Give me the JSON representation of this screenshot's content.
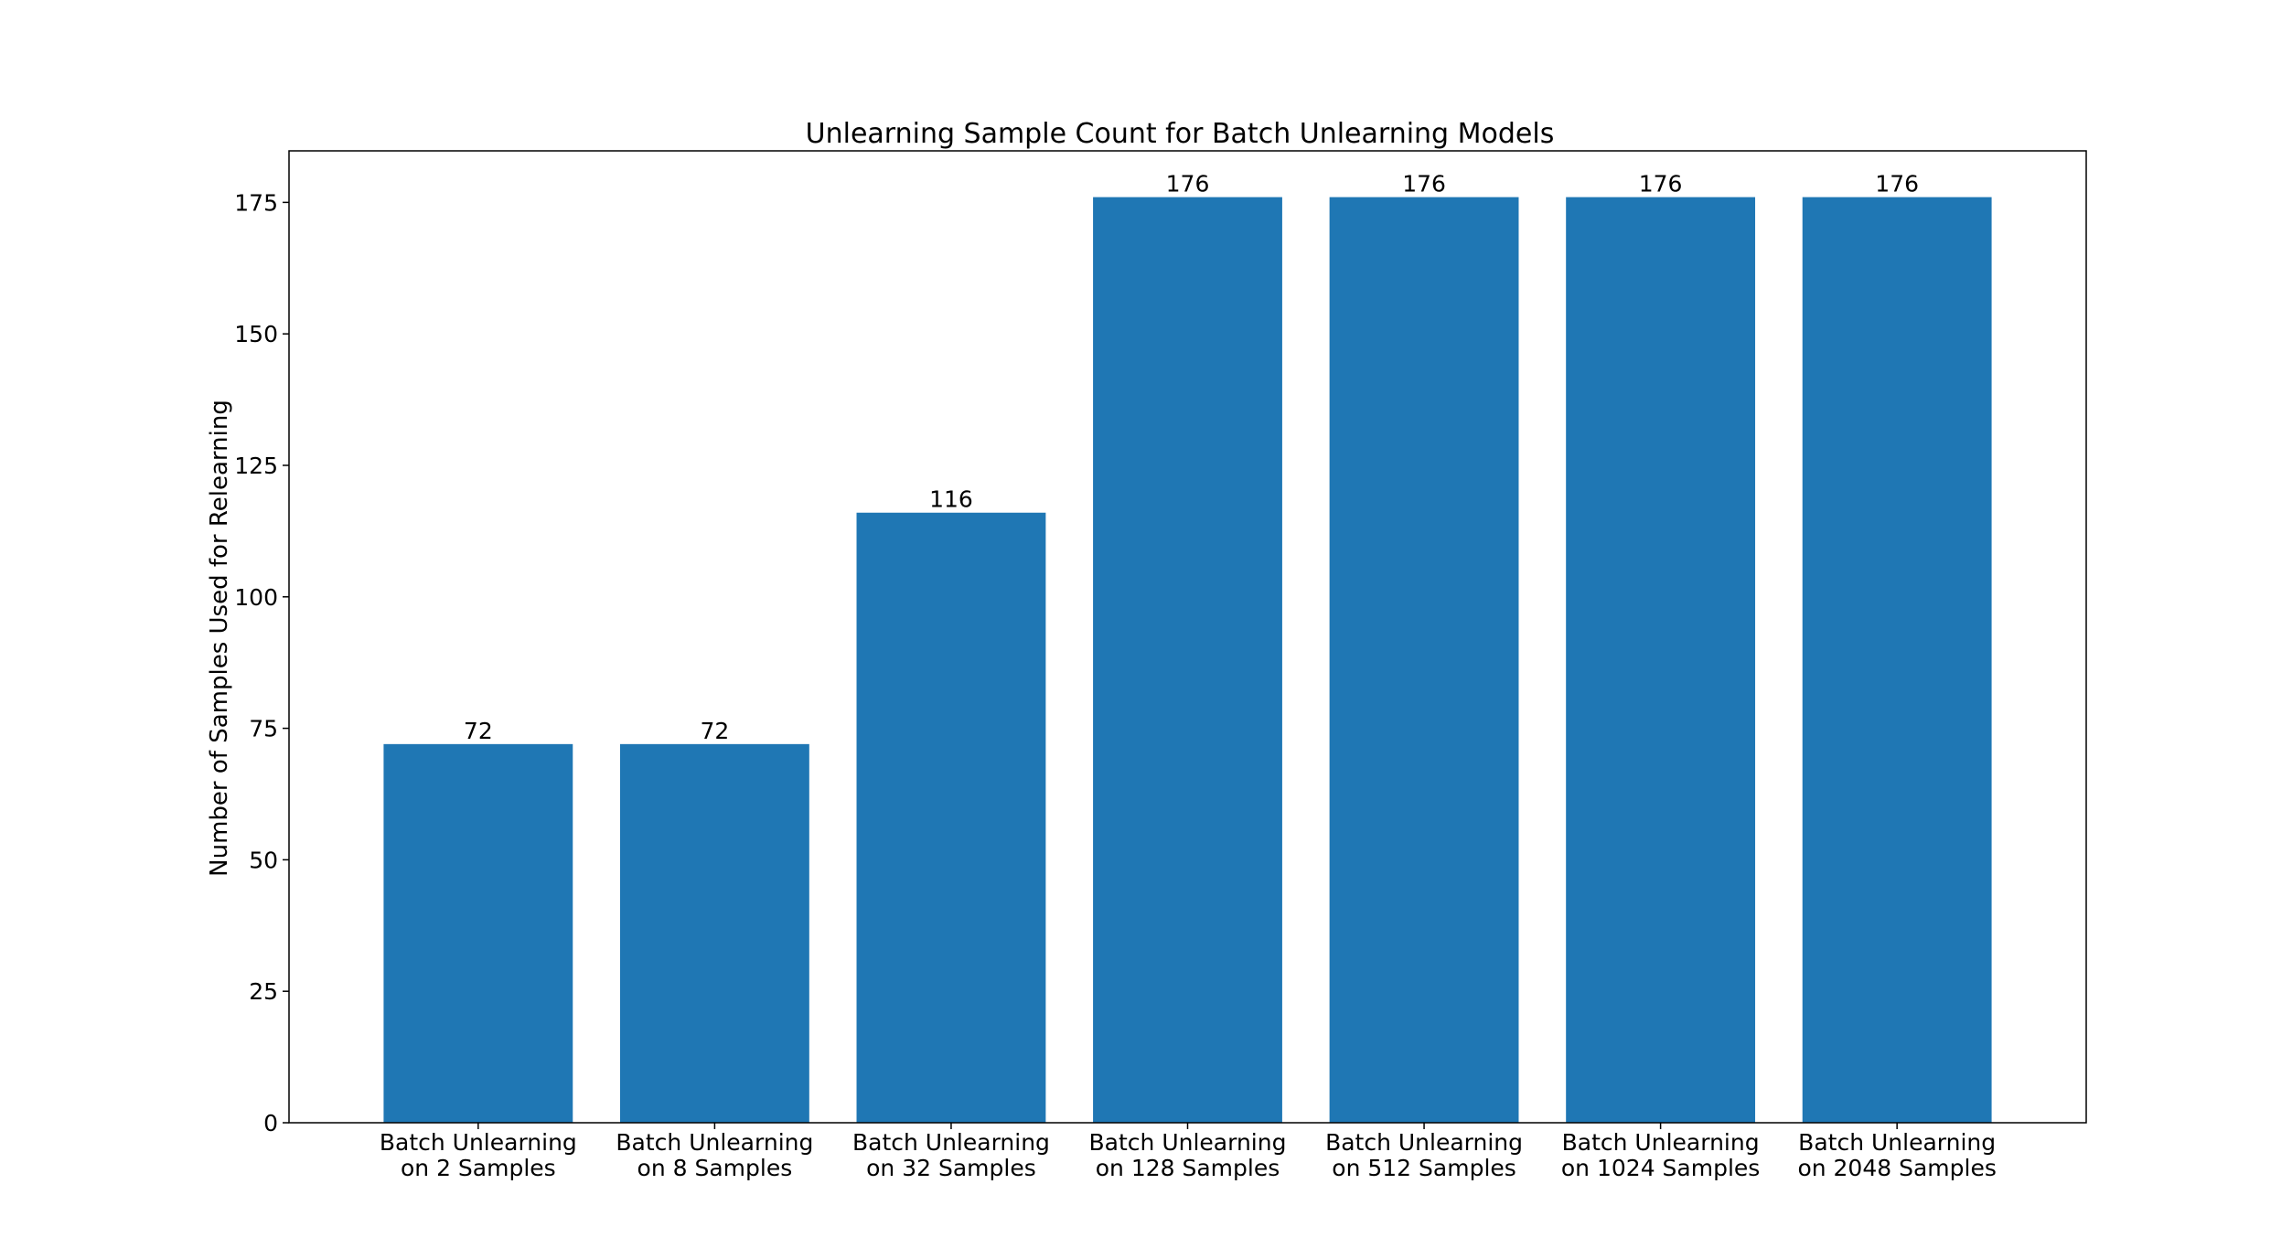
{
  "chart_data": {
    "type": "bar",
    "title": "Unlearning Sample Count for Batch Unlearning Models",
    "xlabel": "",
    "ylabel": "Number of Samples Used for Relearning",
    "categories": [
      [
        "Batch Unlearning",
        "on 2 Samples"
      ],
      [
        "Batch Unlearning",
        "on 8 Samples"
      ],
      [
        "Batch Unlearning",
        "on 32 Samples"
      ],
      [
        "Batch Unlearning",
        "on 128 Samples"
      ],
      [
        "Batch Unlearning",
        "on 512 Samples"
      ],
      [
        "Batch Unlearning",
        "on 1024 Samples"
      ],
      [
        "Batch Unlearning",
        "on 2048 Samples"
      ]
    ],
    "values": [
      72,
      72,
      116,
      176,
      176,
      176,
      176
    ],
    "data_labels": [
      "72",
      "72",
      "116",
      "176",
      "176",
      "176",
      "176"
    ],
    "ylim": [
      0,
      184.8
    ],
    "yticks": [
      0,
      25,
      50,
      75,
      100,
      125,
      150,
      175
    ],
    "grid": false,
    "legend": false,
    "colors": {
      "bar": "#1f77b4",
      "axis": "#000000",
      "background": "#ffffff"
    }
  }
}
